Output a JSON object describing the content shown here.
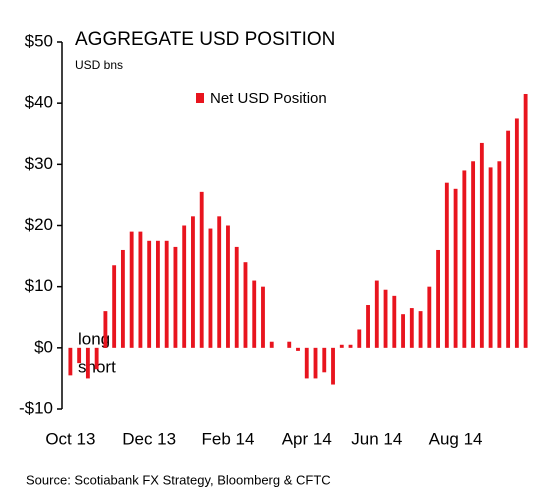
{
  "chart_data": {
    "type": "bar",
    "title": "AGGREGATE USD POSITION",
    "subtitle": "USD bns",
    "source": "Source: Scotiabank FX Strategy, Bloomberg & CFTC",
    "annotations": [
      "long",
      "short"
    ],
    "series": [
      {
        "name": "Net USD Position",
        "color": "#e8141e",
        "values": [
          -4.5,
          -2.5,
          -5,
          -3.5,
          6,
          13.5,
          16,
          19,
          19,
          17.5,
          17.5,
          17.5,
          16.5,
          20,
          21.5,
          25.5,
          19.5,
          21.5,
          20,
          16.5,
          14,
          11,
          10,
          1,
          0,
          1,
          -0.5,
          -5,
          -5,
          -4,
          -6,
          0.5,
          0.5,
          3,
          7,
          11,
          9.5,
          8.5,
          5.5,
          6.5,
          6,
          10,
          16,
          27,
          26,
          29,
          30.5,
          33.5,
          29.5,
          30.5,
          35.5,
          37.5,
          41.5
        ]
      }
    ],
    "categories": [
      "Oct 13",
      null,
      null,
      null,
      null,
      null,
      null,
      null,
      null,
      "Dec 13",
      null,
      null,
      null,
      null,
      null,
      null,
      null,
      null,
      "Feb 14",
      null,
      null,
      null,
      null,
      null,
      null,
      null,
      null,
      "Apr 14",
      null,
      null,
      null,
      null,
      null,
      null,
      null,
      "Jun 14",
      null,
      null,
      null,
      null,
      null,
      null,
      null,
      null,
      "Aug 14",
      null,
      null,
      null,
      null,
      null,
      null,
      null,
      null
    ],
    "ylim": [
      -10,
      50
    ],
    "yticks": [
      {
        "value": -10,
        "label": "-$10"
      },
      {
        "value": 0,
        "label": "$0"
      },
      {
        "value": 10,
        "label": "$10"
      },
      {
        "value": 20,
        "label": "$20"
      },
      {
        "value": 30,
        "label": "$30"
      },
      {
        "value": 40,
        "label": "$40"
      },
      {
        "value": 50,
        "label": "$50"
      }
    ],
    "legend": "top"
  }
}
